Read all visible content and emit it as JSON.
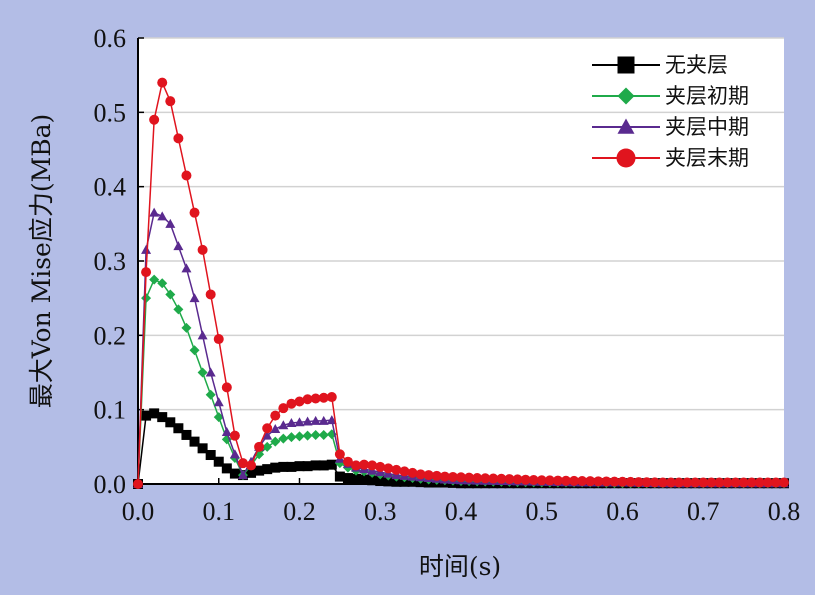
{
  "chart_data": {
    "type": "line",
    "title": "",
    "xlabel": "时间(s)",
    "ylabel": "最大Von Mise应力(MBa)",
    "xlim": [
      0,
      0.8
    ],
    "ylim": [
      0,
      0.6
    ],
    "xticks": [
      "0.0",
      "0.1",
      "0.2",
      "0.3",
      "0.4",
      "0.5",
      "0.6",
      "0.7",
      "0.8"
    ],
    "yticks": [
      "0.0",
      "0.1",
      "0.2",
      "0.3",
      "0.4",
      "0.5",
      "0.6"
    ],
    "grid": "horizontal",
    "legend_position": "top-right",
    "series": [
      {
        "name": "无夹层",
        "color": "#000000",
        "marker": "square",
        "x": [
          0,
          0.01,
          0.02,
          0.03,
          0.04,
          0.05,
          0.06,
          0.07,
          0.08,
          0.09,
          0.1,
          0.11,
          0.12,
          0.13,
          0.14,
          0.15,
          0.16,
          0.17,
          0.18,
          0.19,
          0.2,
          0.21,
          0.22,
          0.23,
          0.24,
          0.25,
          0.26,
          0.27,
          0.28,
          0.29,
          0.3,
          0.32,
          0.34,
          0.36,
          0.38,
          0.4,
          0.45,
          0.5,
          0.55,
          0.6,
          0.65,
          0.7,
          0.75,
          0.8
        ],
        "y": [
          0,
          0.092,
          0.095,
          0.09,
          0.083,
          0.075,
          0.066,
          0.057,
          0.048,
          0.039,
          0.03,
          0.021,
          0.014,
          0.012,
          0.015,
          0.018,
          0.02,
          0.022,
          0.023,
          0.023,
          0.024,
          0.024,
          0.025,
          0.025,
          0.026,
          0.01,
          0.008,
          0.007,
          0.006,
          0.005,
          0.004,
          0.003,
          0.003,
          0.002,
          0.002,
          0.001,
          0.001,
          0.001,
          0.001,
          0.001,
          0.001,
          0.001,
          0.001,
          0.001
        ]
      },
      {
        "name": "夹层初期",
        "color": "#1faa4a",
        "marker": "diamond",
        "x": [
          0,
          0.01,
          0.02,
          0.03,
          0.04,
          0.05,
          0.06,
          0.07,
          0.08,
          0.09,
          0.1,
          0.11,
          0.12,
          0.13,
          0.14,
          0.15,
          0.16,
          0.17,
          0.18,
          0.19,
          0.2,
          0.21,
          0.22,
          0.23,
          0.24,
          0.25,
          0.26,
          0.27,
          0.28,
          0.29,
          0.3,
          0.32,
          0.34,
          0.36,
          0.38,
          0.4,
          0.45,
          0.5,
          0.55,
          0.6,
          0.65,
          0.7,
          0.75,
          0.8
        ],
        "y": [
          0,
          0.25,
          0.275,
          0.27,
          0.255,
          0.235,
          0.21,
          0.18,
          0.15,
          0.12,
          0.09,
          0.06,
          0.035,
          0.012,
          0.025,
          0.04,
          0.05,
          0.057,
          0.061,
          0.063,
          0.064,
          0.065,
          0.066,
          0.066,
          0.067,
          0.028,
          0.022,
          0.018,
          0.017,
          0.015,
          0.013,
          0.01,
          0.008,
          0.006,
          0.005,
          0.004,
          0.003,
          0.002,
          0.002,
          0.001,
          0.001,
          0.001,
          0.001,
          0.001
        ]
      },
      {
        "name": "夹层中期",
        "color": "#5a2a8f",
        "marker": "triangle",
        "x": [
          0,
          0.01,
          0.02,
          0.03,
          0.04,
          0.05,
          0.06,
          0.07,
          0.08,
          0.09,
          0.1,
          0.11,
          0.12,
          0.13,
          0.14,
          0.15,
          0.16,
          0.17,
          0.18,
          0.19,
          0.2,
          0.21,
          0.22,
          0.23,
          0.24,
          0.25,
          0.26,
          0.27,
          0.28,
          0.29,
          0.3,
          0.32,
          0.34,
          0.36,
          0.38,
          0.4,
          0.45,
          0.5,
          0.55,
          0.6,
          0.65,
          0.7,
          0.75,
          0.8
        ],
        "y": [
          0,
          0.315,
          0.365,
          0.36,
          0.35,
          0.32,
          0.29,
          0.25,
          0.2,
          0.15,
          0.11,
          0.07,
          0.04,
          0.012,
          0.03,
          0.05,
          0.065,
          0.074,
          0.079,
          0.082,
          0.083,
          0.084,
          0.085,
          0.085,
          0.086,
          0.034,
          0.027,
          0.022,
          0.02,
          0.018,
          0.016,
          0.012,
          0.01,
          0.008,
          0.006,
          0.005,
          0.004,
          0.003,
          0.002,
          0.002,
          0.001,
          0.001,
          0.001,
          0.001
        ]
      },
      {
        "name": "夹层末期",
        "color": "#e0141e",
        "marker": "circle",
        "x": [
          0,
          0.01,
          0.02,
          0.03,
          0.04,
          0.05,
          0.06,
          0.07,
          0.08,
          0.09,
          0.1,
          0.11,
          0.12,
          0.13,
          0.14,
          0.15,
          0.16,
          0.17,
          0.18,
          0.19,
          0.2,
          0.21,
          0.22,
          0.23,
          0.24,
          0.25,
          0.26,
          0.27,
          0.28,
          0.29,
          0.3,
          0.31,
          0.32,
          0.33,
          0.34,
          0.35,
          0.36,
          0.38,
          0.4,
          0.42,
          0.45,
          0.5,
          0.55,
          0.6,
          0.65,
          0.7,
          0.75,
          0.8
        ],
        "y": [
          0,
          0.285,
          0.49,
          0.54,
          0.515,
          0.465,
          0.415,
          0.365,
          0.315,
          0.255,
          0.195,
          0.13,
          0.065,
          0.028,
          0.025,
          0.05,
          0.075,
          0.092,
          0.102,
          0.108,
          0.111,
          0.114,
          0.115,
          0.116,
          0.117,
          0.04,
          0.03,
          0.025,
          0.026,
          0.025,
          0.023,
          0.021,
          0.019,
          0.017,
          0.015,
          0.013,
          0.012,
          0.01,
          0.009,
          0.008,
          0.007,
          0.005,
          0.004,
          0.003,
          0.002,
          0.002,
          0.002,
          0.002
        ]
      }
    ]
  }
}
